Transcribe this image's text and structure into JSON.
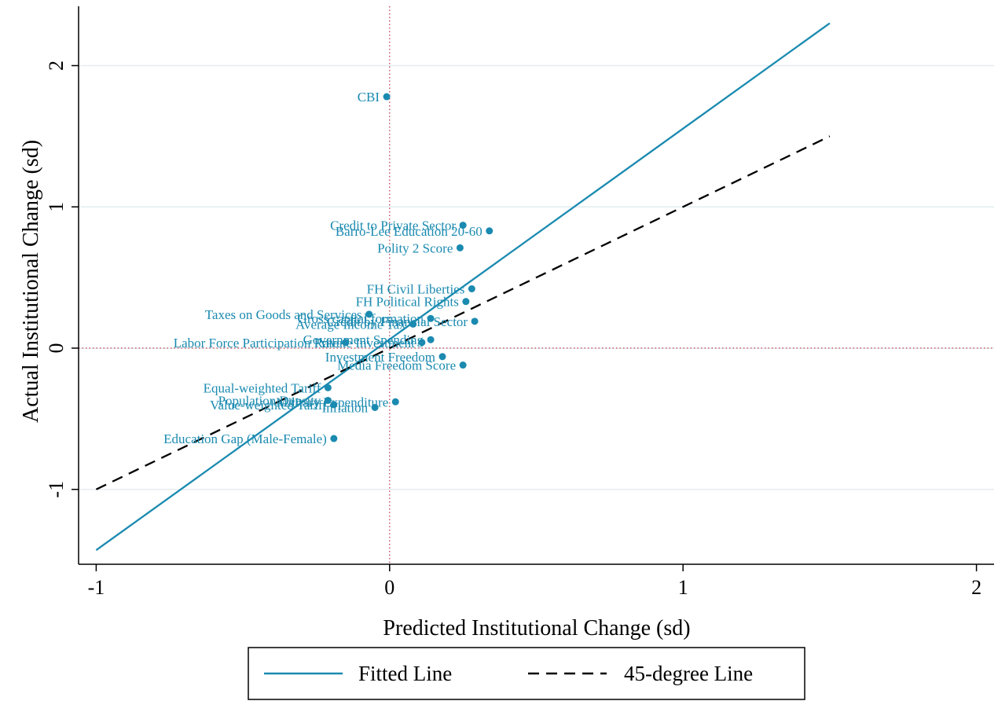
{
  "chart_data": {
    "type": "scatter",
    "xlabel": "Predicted Institutional Change (sd)",
    "ylabel": "Actual Institutional Change (sd)",
    "xlim": [
      -1.06,
      2.06
    ],
    "ylim": [
      -1.53,
      2.42
    ],
    "xticks": [
      -1,
      0,
      1,
      2
    ],
    "yticks": [
      -1,
      0,
      1,
      2
    ],
    "xtick_labels": [
      "-1",
      "0",
      "1",
      "2"
    ],
    "ytick_labels": [
      "-1",
      "0",
      "1",
      "2"
    ],
    "grid": "horizontal",
    "reference_lines": {
      "x": 0,
      "y": 0,
      "style": "dotted",
      "color": "#c04050"
    },
    "colors": {
      "points": "#1a8ab0",
      "fitted": "#1a8ab0",
      "diagonal": "#000000",
      "grid": "#e3ecef"
    },
    "legend_placement": "bottom-center",
    "points": [
      {
        "label": "CBI",
        "x": -0.01,
        "y": 1.78
      },
      {
        "label": "Credit to Private Sector",
        "x": 0.25,
        "y": 0.87
      },
      {
        "label": "Barro-Lee Education 20-60",
        "x": 0.34,
        "y": 0.83
      },
      {
        "label": "Polity 2 Score",
        "x": 0.24,
        "y": 0.71
      },
      {
        "label": "FH Civil Liberties",
        "x": 0.28,
        "y": 0.42
      },
      {
        "label": "FH Political Rights",
        "x": 0.26,
        "y": 0.33
      },
      {
        "label": "Credit by Financial Sector",
        "x": 0.29,
        "y": 0.19
      },
      {
        "label": "Taxes on Goods and Services",
        "x": -0.07,
        "y": 0.24
      },
      {
        "label": "Gross capital formation",
        "x": 0.14,
        "y": 0.21
      },
      {
        "label": "Average Income Tax",
        "x": 0.08,
        "y": 0.17
      },
      {
        "label": "Government Spending",
        "x": 0.14,
        "y": 0.06
      },
      {
        "label": "Labor Force Participation Rate",
        "x": -0.15,
        "y": 0.04
      },
      {
        "label": "Private Investment",
        "x": 0.11,
        "y": 0.04
      },
      {
        "label": "Investment Freedom",
        "x": 0.18,
        "y": -0.06
      },
      {
        "label": "Media Freedom Score",
        "x": 0.25,
        "y": -0.12
      },
      {
        "label": "Equal-weighted Tariff",
        "x": -0.21,
        "y": -0.28
      },
      {
        "label": "Population Density",
        "x": -0.21,
        "y": -0.37
      },
      {
        "label": "Military Expenditure",
        "x": 0.02,
        "y": -0.38
      },
      {
        "label": "Value-weighted Tariff",
        "x": -0.19,
        "y": -0.4
      },
      {
        "label": "Inflation",
        "x": -0.05,
        "y": -0.42
      },
      {
        "label": "Education Gap (Male-Female)",
        "x": -0.19,
        "y": -0.64
      }
    ],
    "series": [
      {
        "name": "Fitted Line",
        "x": [
          -1,
          1.5
        ],
        "y": [
          -1.43,
          2.3
        ]
      },
      {
        "name": "45-degree Line",
        "x": [
          -1,
          1.5
        ],
        "y": [
          -1,
          1.5
        ]
      }
    ]
  }
}
